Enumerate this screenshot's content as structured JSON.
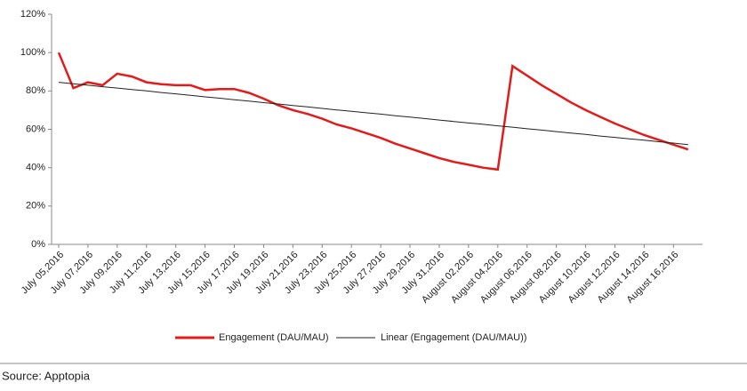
{
  "chart_data": {
    "type": "line",
    "categories": [
      "July 05,2016",
      null,
      "July 07,2016",
      null,
      "July 09,2016",
      null,
      "July 11,2016",
      null,
      "July 13,2016",
      null,
      "July 15,2016",
      null,
      "July 17,2016",
      null,
      "July 19,2016",
      null,
      "July 21,2016",
      null,
      "July 23,2016",
      null,
      "July 25,2016",
      null,
      "July 27,2016",
      null,
      "July 29,2016",
      null,
      "July 31,2016",
      null,
      "August 02,2016",
      null,
      "August 04,2016",
      null,
      "August 06,2016",
      null,
      "August 08,2016",
      null,
      "August 10,2016",
      null,
      "August 12,2016",
      null,
      "August 14,2016",
      null,
      "August 16,2016",
      null
    ],
    "series": [
      {
        "name": "Engagement (DAU/MAU)",
        "color": "#e31b1b",
        "values": [
          100,
          81.5,
          84.5,
          83,
          89,
          87.5,
          84.5,
          83.5,
          83,
          83,
          80.5,
          81,
          81,
          79,
          76,
          72.5,
          70,
          68,
          65.5,
          62.5,
          60.5,
          58,
          55.5,
          52.5,
          50,
          47.5,
          45,
          43,
          41.5,
          40,
          39,
          93,
          88,
          83,
          78.5,
          74,
          70,
          66.5,
          63,
          60,
          57,
          54.5,
          52,
          49.5
        ]
      },
      {
        "name": "Linear (Engagement (DAU/MAU))",
        "color": "#222222",
        "values": [
          84.5,
          83.7,
          83.0,
          82.2,
          81.5,
          80.7,
          80.0,
          79.2,
          78.5,
          77.7,
          76.9,
          76.2,
          75.4,
          74.7,
          73.9,
          73.2,
          72.4,
          71.7,
          70.9,
          70.1,
          69.4,
          68.6,
          67.9,
          67.1,
          66.4,
          65.6,
          64.8,
          64.1,
          63.3,
          62.6,
          61.8,
          61.1,
          60.3,
          59.6,
          58.8,
          58.0,
          57.3,
          56.5,
          55.8,
          55.0,
          54.3,
          53.5,
          52.8,
          52.0
        ]
      }
    ],
    "ylim": [
      0,
      120
    ],
    "yticks": [
      {
        "value": 0,
        "label": "0%"
      },
      {
        "value": 20,
        "label": "20%"
      },
      {
        "value": 40,
        "label": "40%"
      },
      {
        "value": 60,
        "label": "60%"
      },
      {
        "value": 80,
        "label": "80%"
      },
      {
        "value": 100,
        "label": "100%"
      },
      {
        "value": 120,
        "label": "120%"
      }
    ],
    "legend": "bottom",
    "source": "Source: Apptopia"
  }
}
